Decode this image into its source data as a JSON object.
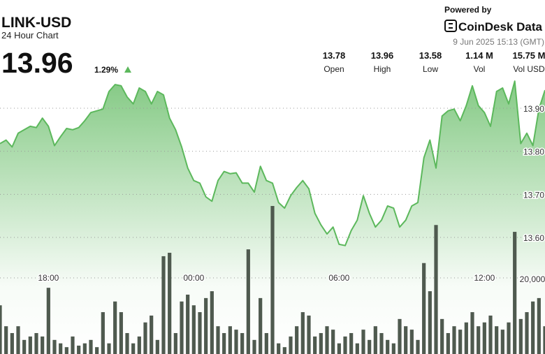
{
  "header": {
    "powered_by": "Powered by",
    "brand": "CoinDesk Data",
    "timestamp": "9 Jun 2025 15:13 (GMT)"
  },
  "chart_data": {
    "type": "area",
    "title": "LINK-USD",
    "subtitle": "24 Hour Chart",
    "price": 13.96,
    "change": {
      "value": 1.29,
      "label": "1.29%"
    },
    "stats": [
      {
        "label": "Open",
        "value": 13.78
      },
      {
        "label": "High",
        "value": 13.96
      },
      {
        "label": "Low",
        "value": 13.58
      },
      {
        "label": "Vol",
        "value": {
          "value": 1140000,
          "label": "1.14 M"
        }
      },
      {
        "label": "Vol USD",
        "value": {
          "value": 15750000,
          "label": "15.75 M"
        }
      }
    ],
    "categories": [
      null,
      null,
      null,
      null,
      null,
      null,
      null,
      null,
      "18:00",
      null,
      null,
      null,
      null,
      null,
      null,
      null,
      null,
      null,
      null,
      null,
      null,
      null,
      null,
      null,
      null,
      null,
      null,
      null,
      null,
      null,
      null,
      null,
      "00:00",
      null,
      null,
      null,
      null,
      null,
      null,
      null,
      null,
      null,
      null,
      null,
      null,
      null,
      null,
      null,
      null,
      null,
      null,
      null,
      null,
      null,
      null,
      null,
      "06:00",
      null,
      null,
      null,
      null,
      null,
      null,
      null,
      null,
      null,
      null,
      null,
      null,
      null,
      null,
      null,
      null,
      null,
      null,
      null,
      null,
      null,
      null,
      null,
      "12:00",
      null,
      null,
      null,
      null,
      null,
      null,
      null,
      null,
      null,
      null
    ],
    "series": [
      {
        "name": "Price",
        "color": "#5cb85c",
        "values": [
          13.818,
          13.826,
          13.81,
          13.842,
          13.85,
          13.858,
          13.855,
          13.877,
          13.858,
          13.813,
          13.834,
          13.853,
          13.85,
          13.855,
          13.871,
          13.89,
          13.894,
          13.898,
          13.939,
          13.955,
          13.952,
          13.926,
          13.91,
          13.947,
          13.939,
          13.91,
          13.939,
          13.931,
          13.877,
          13.85,
          13.81,
          13.761,
          13.732,
          13.726,
          13.694,
          13.684,
          13.732,
          13.753,
          13.748,
          13.75,
          13.726,
          13.726,
          13.705,
          13.765,
          13.732,
          13.726,
          13.681,
          13.668,
          13.697,
          13.716,
          13.732,
          13.713,
          13.656,
          13.629,
          13.608,
          13.624,
          13.584,
          13.581,
          13.616,
          13.64,
          13.697,
          13.656,
          13.624,
          13.64,
          13.673,
          13.668,
          13.624,
          13.64,
          13.673,
          13.681,
          13.785,
          13.826,
          13.761,
          13.882,
          13.894,
          13.898,
          13.871,
          13.906,
          13.952,
          13.906,
          13.89,
          13.858,
          13.939,
          13.947,
          13.91,
          13.963,
          13.818,
          13.842,
          13.813,
          13.898,
          13.942
        ]
      },
      {
        "name": "Volume",
        "type": "bar",
        "axis": "y2",
        "color": "#4f5a4f",
        "values": [
          12800,
          7300,
          5500,
          7300,
          3700,
          4600,
          5500,
          4600,
          17400,
          3700,
          2800,
          1800,
          4600,
          2200,
          2800,
          3700,
          1800,
          11000,
          2800,
          13800,
          11000,
          5500,
          2800,
          4600,
          8300,
          10100,
          3700,
          25700,
          26600,
          5500,
          13800,
          15600,
          12800,
          11000,
          14700,
          16500,
          7300,
          5500,
          7300,
          6400,
          5500,
          27500,
          3700,
          14700,
          5500,
          38900,
          2800,
          1800,
          4600,
          7300,
          11000,
          10100,
          4600,
          5500,
          7300,
          6400,
          2800,
          4600,
          5500,
          2800,
          6400,
          3700,
          7300,
          5500,
          3700,
          2800,
          9200,
          7300,
          6400,
          3700,
          23900,
          16500,
          33900,
          9200,
          5500,
          7300,
          6400,
          8300,
          11000,
          7300,
          8300,
          10100,
          7300,
          6400,
          8300,
          32100,
          9200,
          11000,
          13800,
          14700,
          7300
        ]
      }
    ],
    "ylim": [
      13.6,
      13.9
    ],
    "yticks": [
      {
        "value": 13.6,
        "label": "13.60"
      },
      {
        "value": 13.7,
        "label": "13.70"
      },
      {
        "value": 13.8,
        "label": "13.80"
      },
      {
        "value": 13.9,
        "label": "13.90"
      }
    ],
    "y2lim": [
      0,
      40000
    ],
    "y2ticks": [
      {
        "value": 20000,
        "label": "20,000"
      }
    ],
    "grid": true
  }
}
